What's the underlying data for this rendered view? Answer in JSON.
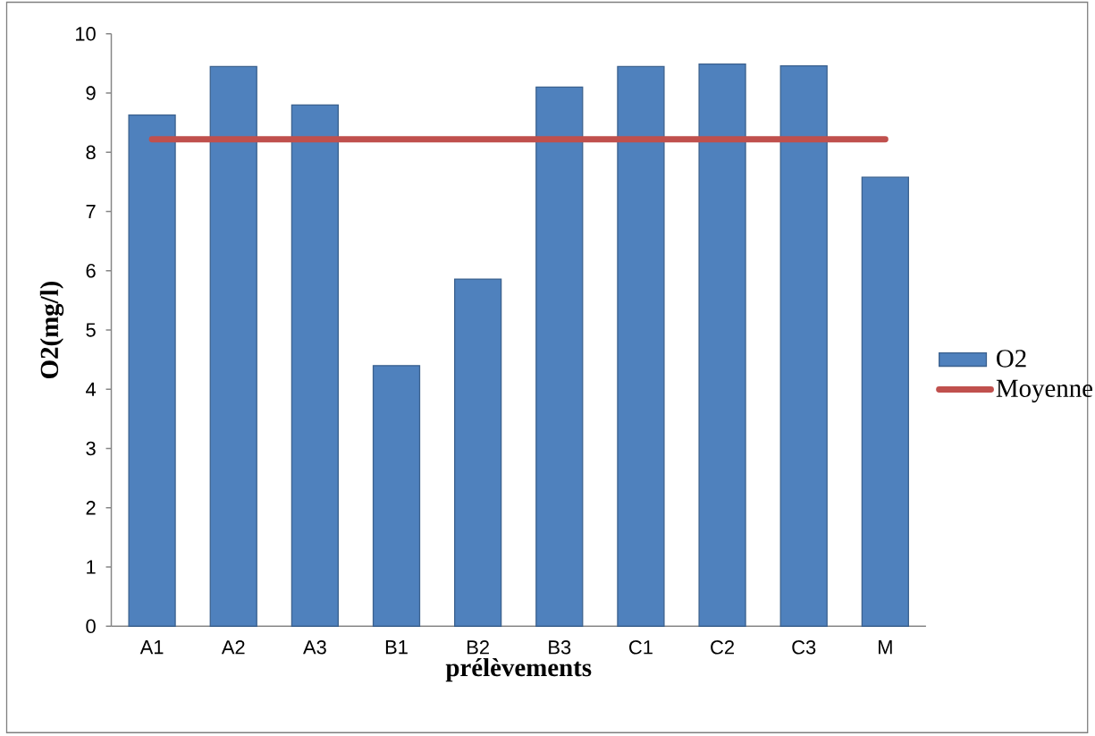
{
  "chart_data": {
    "type": "bar",
    "xlabel": "prélèvements",
    "ylabel": "O2(mg/l)",
    "categories": [
      "A1",
      "A2",
      "A3",
      "B1",
      "B2",
      "B3",
      "C1",
      "C2",
      "C3",
      "M"
    ],
    "series": [
      {
        "name": "O2",
        "color": "#4f81bd",
        "values": [
          8.63,
          9.45,
          8.8,
          4.4,
          5.86,
          9.1,
          9.45,
          9.49,
          9.46,
          7.58
        ]
      },
      {
        "name": "Moyenne",
        "type": "line",
        "color": "#c0504d",
        "values": [
          8.22,
          8.22,
          8.22,
          8.22,
          8.22,
          8.22,
          8.22,
          8.22,
          8.22,
          8.22
        ]
      }
    ],
    "ylim": [
      0,
      10
    ],
    "yticks": [
      0,
      1,
      2,
      3,
      4,
      5,
      6,
      7,
      8,
      9,
      10
    ],
    "legend": "right"
  }
}
